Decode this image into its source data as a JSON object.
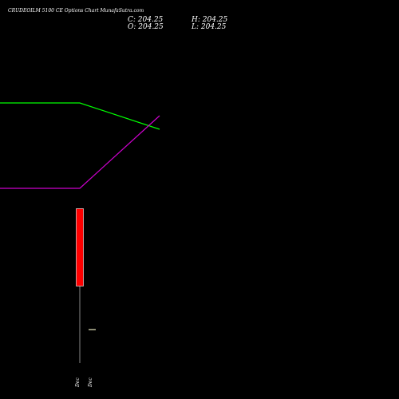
{
  "header": {
    "title": "CRUDEOILM 5100  CE Options  Chart MunafaSutra.com",
    "close": "C: 204.25",
    "high": "H: 204.25",
    "open": "O: 204.25",
    "low": "L: 204.25"
  },
  "chart_data": {
    "type": "candlestick",
    "title": "CRUDEOILM 5100  CE Options  Chart MunafaSutra.com",
    "x_tick_labels": [
      "Dec",
      "Dec"
    ],
    "candles": [
      {
        "open": 204.25,
        "high": 204.25,
        "low": 204.25,
        "close": 204.25,
        "color": "#ff0000"
      }
    ],
    "lines": [
      {
        "color": "#00ff00",
        "shape": "flat then declining"
      },
      {
        "color": "#cc00cc",
        "shape": "flat then rising"
      }
    ],
    "colors": {
      "background": "#000000",
      "down": "#ff0000",
      "text": "#ffffff"
    }
  }
}
